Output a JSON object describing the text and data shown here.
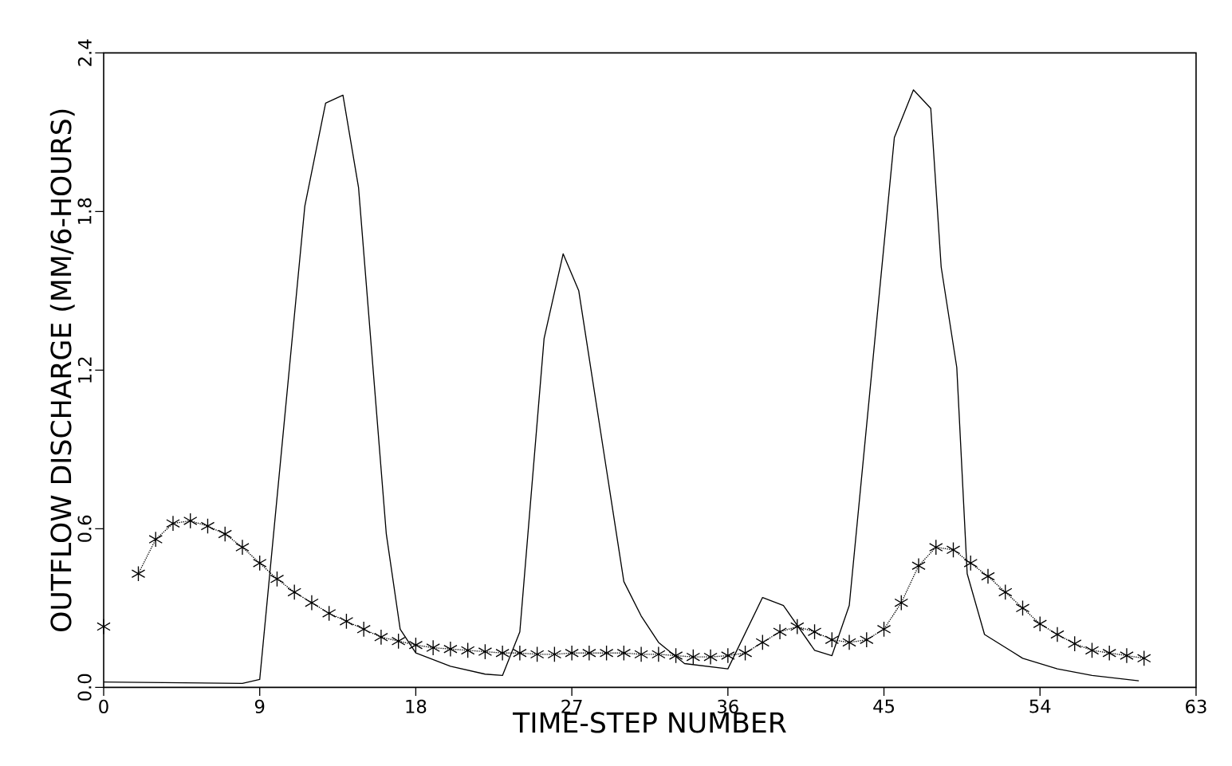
{
  "chart_data": {
    "type": "line",
    "xlabel": "TIME-STEP NUMBER",
    "ylabel": "OUTFLOW DISCHARGE (MM/6-HOURS)",
    "xlim": [
      0,
      63
    ],
    "ylim": [
      0,
      2.4
    ],
    "xticks": [
      0,
      9,
      18,
      27,
      36,
      45,
      54,
      63
    ],
    "yticks": [
      {
        "value": 0,
        "label": "0.0"
      },
      {
        "value": 0.6,
        "label": "0.6"
      },
      {
        "value": 1.2,
        "label": "1.2"
      },
      {
        "value": 1.8,
        "label": "1.8"
      },
      {
        "value": 2.4,
        "label": "2.4"
      }
    ],
    "grid": false,
    "series": [
      {
        "color": "#000000",
        "marker": "none",
        "line_style": "solid",
        "x": [
          0,
          8,
          9,
          11.6,
          12.8,
          13.8,
          14.7,
          16.3,
          17.1,
          18,
          20,
          22,
          23,
          24,
          25.4,
          26.5,
          27.4,
          30,
          31,
          32,
          33.5,
          36,
          38,
          39.2,
          41,
          42,
          43,
          45.6,
          46.7,
          47.7,
          48.3,
          49.2,
          49.8,
          50.8,
          53,
          55,
          57,
          59.7
        ],
        "values": [
          0.02,
          0.015,
          0.03,
          1.82,
          2.21,
          2.24,
          1.89,
          0.58,
          0.22,
          0.13,
          0.08,
          0.05,
          0.045,
          0.21,
          1.32,
          1.64,
          1.5,
          0.4,
          0.27,
          0.17,
          0.09,
          0.07,
          0.34,
          0.31,
          0.14,
          0.12,
          0.31,
          2.08,
          2.26,
          2.19,
          1.59,
          1.21,
          0.43,
          0.2,
          0.11,
          0.07,
          0.045,
          0.025
        ]
      },
      {
        "color": "#000000",
        "marker": "cross",
        "line_style": "dotted",
        "x": [
          0,
          1,
          2,
          3,
          4,
          5,
          6,
          7,
          8,
          9,
          10,
          11,
          12,
          13,
          14,
          15,
          16,
          17,
          18,
          19,
          20,
          21,
          22,
          23,
          24,
          25,
          26,
          27,
          28,
          29,
          30,
          31,
          32,
          33,
          34,
          35,
          36,
          37,
          38,
          39,
          40,
          41,
          42,
          43,
          44,
          45,
          46,
          47,
          48,
          49,
          50,
          51,
          52,
          53,
          54,
          55,
          56,
          57,
          58,
          59,
          60
        ],
        "values": [
          0.23,
          null,
          0.43,
          0.56,
          0.62,
          0.63,
          0.61,
          0.58,
          0.53,
          0.47,
          0.41,
          0.36,
          0.32,
          0.28,
          0.25,
          0.22,
          0.19,
          0.175,
          0.16,
          0.15,
          0.145,
          0.14,
          0.135,
          0.13,
          0.13,
          0.125,
          0.125,
          0.13,
          0.13,
          0.13,
          0.13,
          0.125,
          0.125,
          0.12,
          0.115,
          0.115,
          0.12,
          0.13,
          0.17,
          0.21,
          0.23,
          0.21,
          0.18,
          0.17,
          0.18,
          0.22,
          0.32,
          0.46,
          0.53,
          0.52,
          0.47,
          0.42,
          0.36,
          0.3,
          0.24,
          0.2,
          0.165,
          0.14,
          0.13,
          0.12,
          0.11
        ]
      }
    ]
  }
}
